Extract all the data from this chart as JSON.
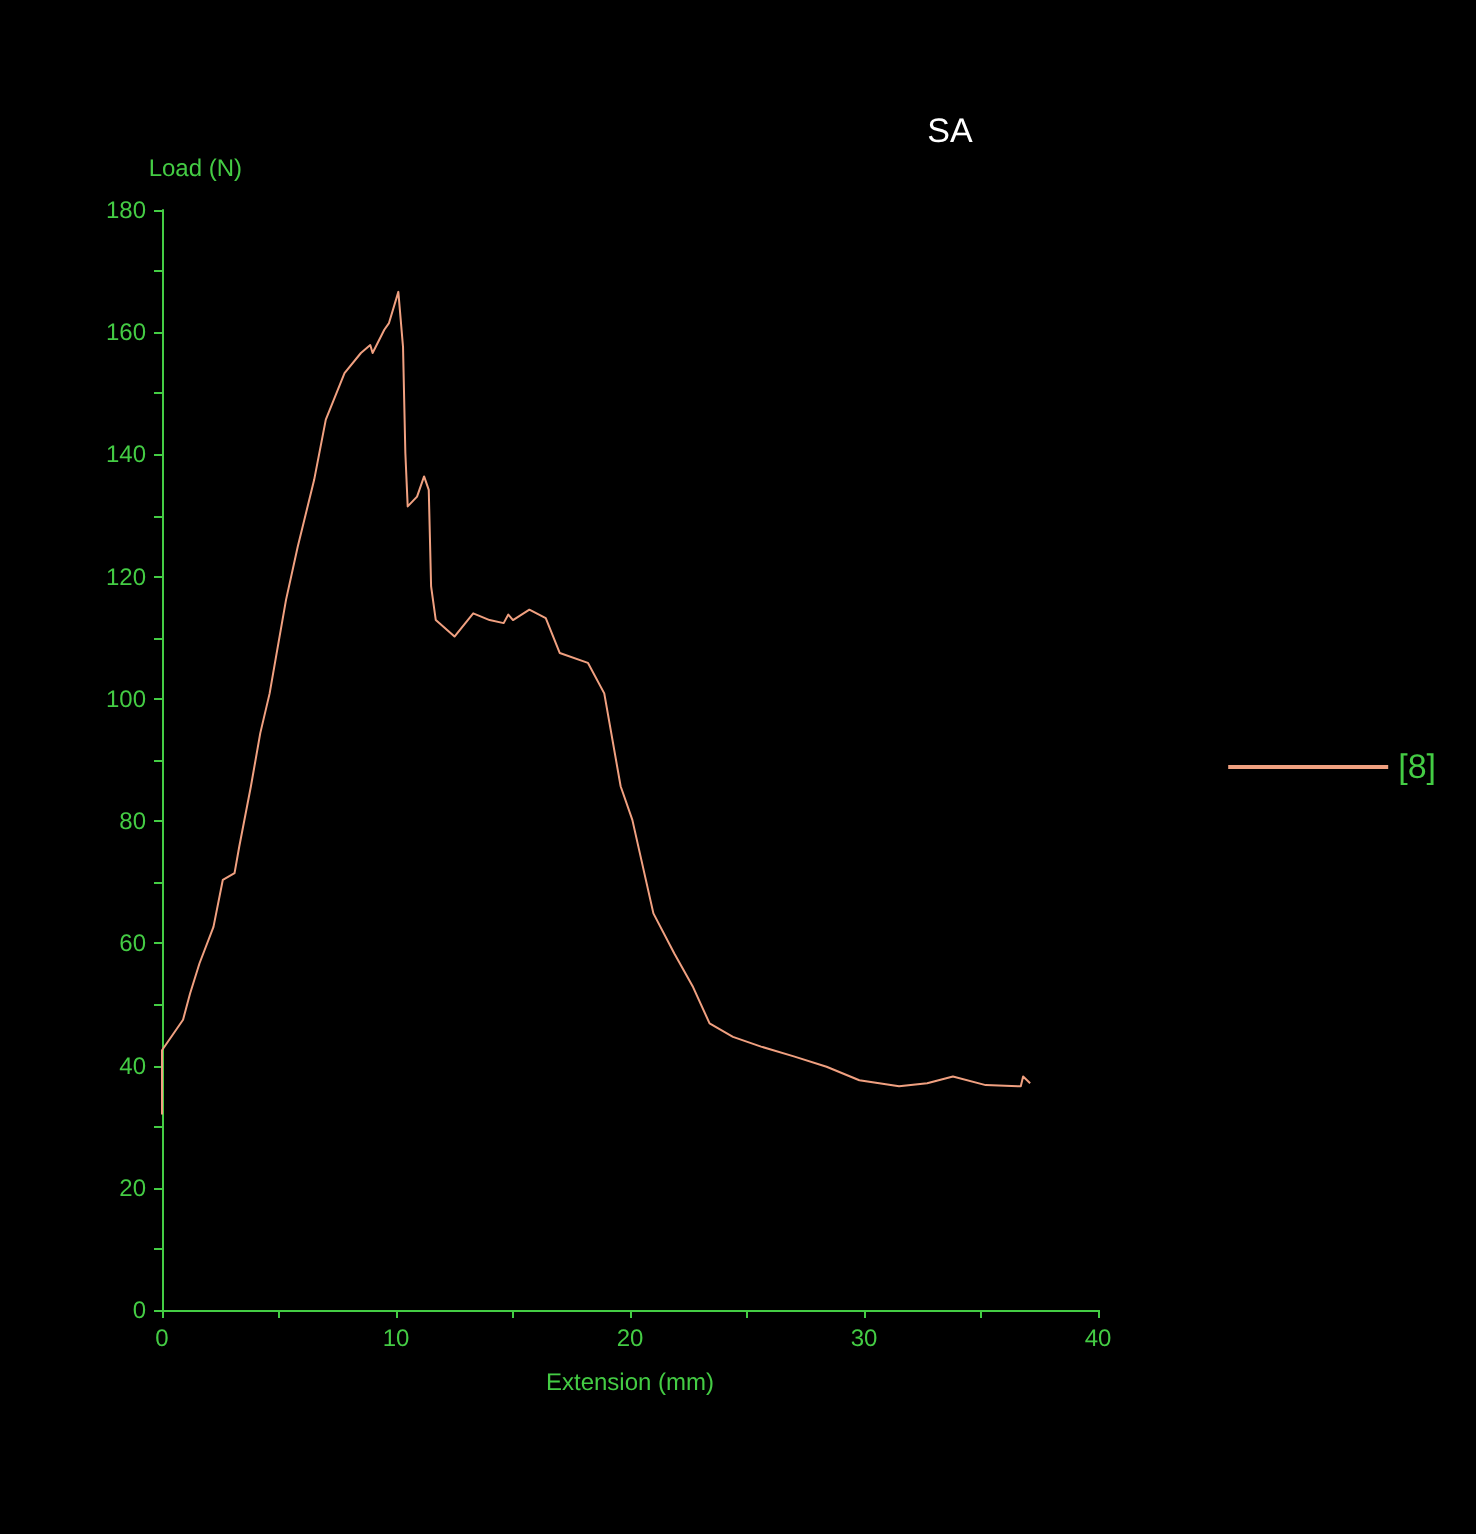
{
  "chart_data": {
    "type": "line",
    "title": "SA",
    "xlabel": "Extension (mm)",
    "ylabel": "Load (N)",
    "xlim": [
      0,
      40
    ],
    "ylim": [
      0,
      180
    ],
    "xticks": [
      0,
      {
        "value": 5,
        "label": null
      },
      10,
      {
        "value": 15,
        "label": null
      },
      20,
      {
        "value": 25,
        "label": null
      },
      30,
      {
        "value": 35,
        "label": null
      },
      40
    ],
    "yticks": [
      0,
      {
        "value": 10,
        "label": null
      },
      20,
      {
        "value": 30,
        "label": null
      },
      40,
      {
        "value": 50,
        "label": null
      },
      60,
      {
        "value": 70,
        "label": null
      },
      80,
      {
        "value": 90,
        "label": null
      },
      100,
      {
        "value": 110,
        "label": null
      },
      120,
      {
        "value": 130,
        "label": null
      },
      140,
      {
        "value": 150,
        "label": null
      },
      160,
      {
        "value": 170,
        "label": null
      },
      180
    ],
    "grid": false,
    "legend": "right",
    "marker": "none",
    "line_style": "solid",
    "series": [
      {
        "name": "[8]",
        "color": "#f0a080",
        "x": [
          0,
          0,
          0.9,
          1.2,
          1.6,
          2.2,
          2.6,
          3.1,
          3.3,
          3.8,
          4.2,
          4.6,
          4.9,
          5.3,
          5.8,
          6.5,
          7.0,
          7.8,
          8.5,
          8.9,
          9.0,
          9.5,
          9.7,
          10.1,
          10.3,
          10.4,
          10.5,
          10.9,
          11.2,
          11.4,
          11.5,
          11.7,
          12.5,
          13.3,
          14.0,
          14.6,
          14.8,
          15.0,
          15.7,
          16.4,
          17.0,
          18.2,
          18.9,
          19.6,
          20.1,
          21.0,
          21.9,
          22.7,
          23.4,
          24.4,
          25.6,
          27.0,
          28.4,
          29.8,
          31.5,
          32.7,
          33.8,
          35.2,
          36.7,
          36.8,
          37.1
        ],
        "values": [
          32,
          42.5,
          47.5,
          51.8,
          56.7,
          62.7,
          70.4,
          71.5,
          75.8,
          85.7,
          94.4,
          100.9,
          107.5,
          116.2,
          124.9,
          135.8,
          145.7,
          153.3,
          156.6,
          157.9,
          156.6,
          160.4,
          161.5,
          166.6,
          157.6,
          140.2,
          131.5,
          133.1,
          136.4,
          134.2,
          118.4,
          112.9,
          110.2,
          114.0,
          112.9,
          112.4,
          113.8,
          112.9,
          114.6,
          113.2,
          107.5,
          105.9,
          100.9,
          85.7,
          80.2,
          64.9,
          58.3,
          52.8,
          46.9,
          44.7,
          43.1,
          41.5,
          39.8,
          37.6,
          36.6,
          37.1,
          38.2,
          36.8,
          36.6,
          38.2,
          37.1
        ]
      }
    ]
  }
}
